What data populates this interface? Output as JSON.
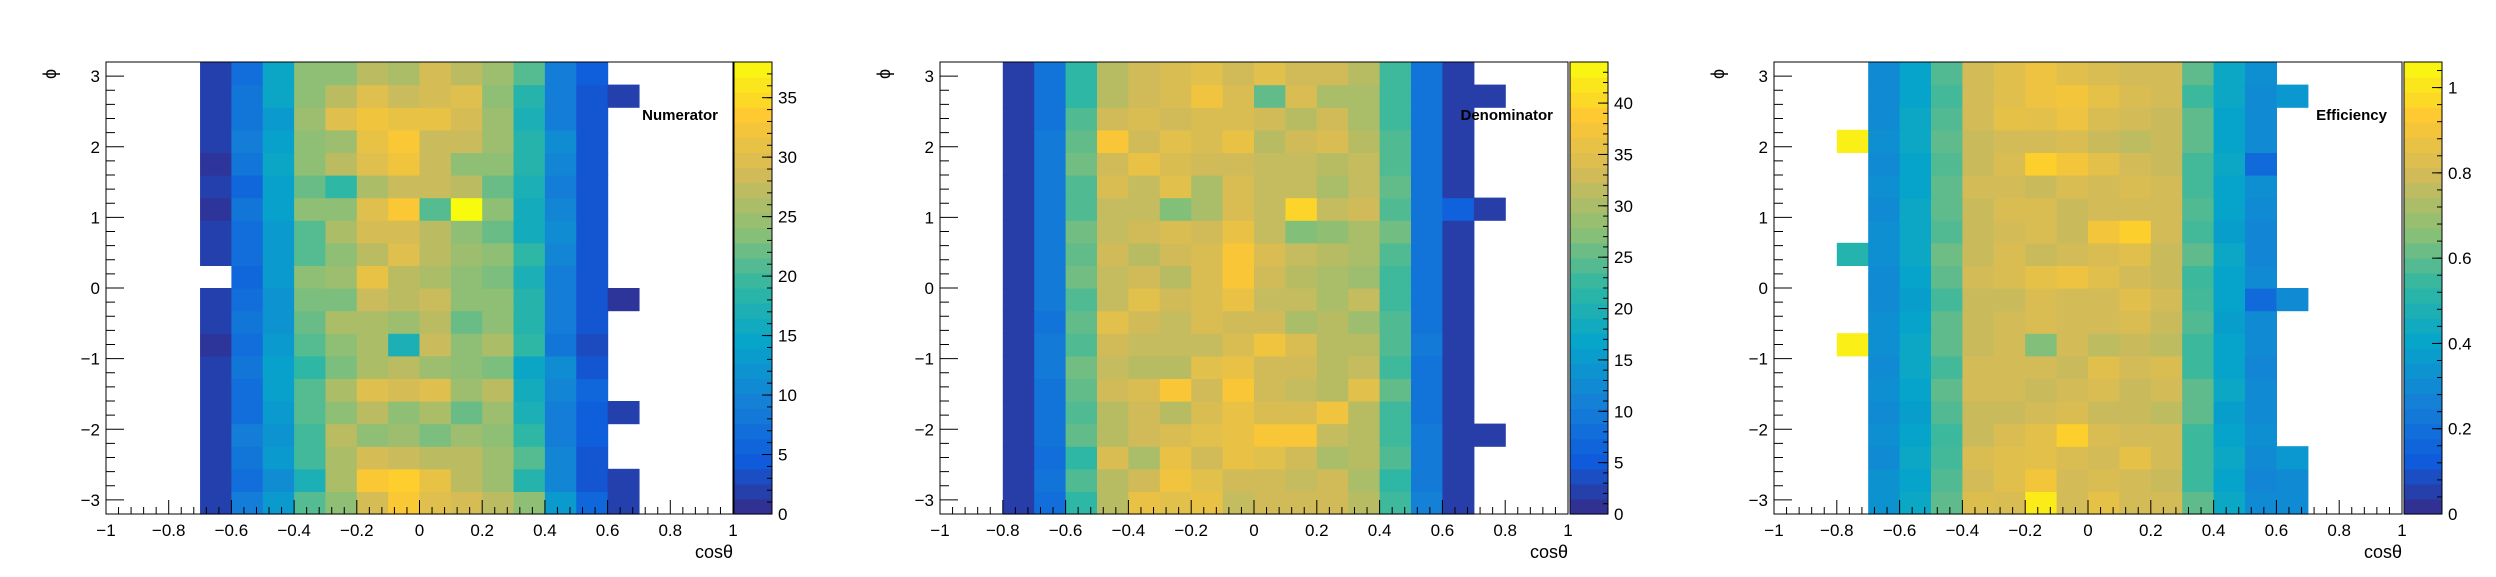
{
  "chart_data": [
    {
      "type": "heatmap",
      "title": "Numerator",
      "xlabel": "cosθ",
      "ylabel": "ϕ",
      "xlim": [
        -1,
        1
      ],
      "ylim": [
        -3.2,
        3.2
      ],
      "zlim": [
        0,
        38
      ],
      "x_ticks": [
        -1,
        -0.8,
        -0.6,
        -0.4,
        -0.2,
        0,
        0.2,
        0.4,
        0.6,
        0.8,
        1
      ],
      "x_tick_labels": [
        "−1",
        "−0.8",
        "−0.6",
        "−0.4",
        "−0.2",
        "0",
        "0.2",
        "0.4",
        "0.6",
        "0.8",
        "1"
      ],
      "y_ticks": [
        -3,
        -2,
        -1,
        0,
        1,
        2,
        3
      ],
      "y_tick_labels": [
        "−3",
        "−2",
        "−1",
        "0",
        "1",
        "2",
        "3"
      ],
      "z_ticks": [
        0,
        5,
        10,
        15,
        20,
        25,
        30,
        35
      ],
      "z_tick_labels": [
        "0",
        "5",
        "10",
        "15",
        "20",
        "25",
        "30",
        "35"
      ],
      "x_bin_edges": [
        -0.7,
        0.7
      ],
      "n_x_bins": 14,
      "n_y_bins": 20,
      "values": [
        [
          2,
          9,
          13,
          21,
          24,
          29,
          33,
          30,
          29,
          27,
          24,
          13,
          6,
          2
        ],
        [
          2,
          7,
          11,
          17,
          26,
          33,
          34,
          31,
          27,
          25,
          18,
          10,
          4,
          2
        ],
        [
          2,
          8,
          13,
          20,
          26,
          29,
          28,
          27,
          27,
          25,
          21,
          10,
          4,
          0
        ],
        [
          2,
          9,
          12,
          20,
          27,
          24,
          25,
          23,
          25,
          24,
          19,
          9,
          5,
          0
        ],
        [
          2,
          7,
          13,
          21,
          24,
          27,
          24,
          26,
          22,
          25,
          17,
          9,
          5,
          2
        ],
        [
          2,
          7,
          14,
          21,
          26,
          30,
          29,
          30,
          25,
          27,
          16,
          10,
          6,
          0
        ],
        [
          2,
          8,
          14,
          19,
          23,
          26,
          27,
          25,
          24,
          23,
          15,
          11,
          4,
          0
        ],
        [
          1,
          7,
          13,
          21,
          24,
          26,
          17,
          28,
          24,
          26,
          19,
          8,
          3,
          0
        ],
        [
          2,
          8,
          12,
          22,
          26,
          26,
          25,
          27,
          22,
          24,
          18,
          9,
          4,
          0
        ],
        [
          2,
          7,
          12,
          23,
          23,
          28,
          27,
          28,
          24,
          24,
          18,
          9,
          4,
          1
        ],
        [
          0,
          6,
          13,
          24,
          25,
          31,
          27,
          26,
          24,
          23,
          17,
          9,
          4,
          0
        ],
        [
          2,
          7,
          13,
          21,
          24,
          27,
          30,
          27,
          25,
          24,
          19,
          10,
          4,
          0
        ],
        [
          2,
          7,
          13,
          21,
          26,
          29,
          29,
          27,
          24,
          22,
          16,
          11,
          4,
          0
        ],
        [
          1,
          8,
          14,
          24,
          24,
          30,
          33,
          21,
          38,
          24,
          16,
          10,
          4,
          0
        ],
        [
          2,
          6,
          14,
          22,
          19,
          26,
          28,
          28,
          27,
          22,
          17,
          9,
          4,
          0
        ],
        [
          1,
          8,
          15,
          24,
          27,
          30,
          32,
          28,
          24,
          24,
          18,
          10,
          4,
          0
        ],
        [
          2,
          9,
          14,
          24,
          25,
          31,
          33,
          28,
          28,
          25,
          18,
          11,
          4,
          0
        ],
        [
          2,
          8,
          13,
          25,
          30,
          32,
          31,
          31,
          29,
          25,
          17,
          9,
          4,
          0
        ],
        [
          2,
          8,
          15,
          24,
          27,
          30,
          28,
          29,
          30,
          24,
          18,
          9,
          4,
          2
        ],
        [
          2,
          7,
          15,
          24,
          24,
          27,
          26,
          29,
          27,
          25,
          21,
          9,
          5,
          0
        ]
      ]
    },
    {
      "type": "heatmap",
      "title": "Denominator",
      "xlabel": "cosθ",
      "ylabel": "ϕ",
      "xlim": [
        -1,
        1
      ],
      "ylim": [
        -3.2,
        3.2
      ],
      "zlim": [
        0,
        44
      ],
      "x_ticks": [
        -1,
        -0.8,
        -0.6,
        -0.4,
        -0.2,
        0,
        0.2,
        0.4,
        0.6,
        0.8,
        1
      ],
      "x_tick_labels": [
        "−1",
        "−0.8",
        "−0.6",
        "−0.4",
        "−0.2",
        "0",
        "0.2",
        "0.4",
        "0.6",
        "0.8",
        "1"
      ],
      "y_ticks": [
        -3,
        -2,
        -1,
        0,
        1,
        2,
        3
      ],
      "y_tick_labels": [
        "−3",
        "−2",
        "−1",
        "0",
        "1",
        "2",
        "3"
      ],
      "z_ticks": [
        0,
        5,
        10,
        15,
        20,
        25,
        30,
        35,
        40
      ],
      "z_tick_labels": [
        "0",
        "5",
        "10",
        "15",
        "20",
        "25",
        "30",
        "35",
        "40"
      ],
      "x_bin_edges": [
        -0.9,
        0.9
      ],
      "n_x_bins": 18,
      "n_y_bins": 20,
      "values": [
        [
          0,
          2,
          8,
          22,
          31,
          36,
          35,
          36,
          32,
          33,
          33,
          33,
          31,
          23,
          11,
          2,
          0,
          0
        ],
        [
          0,
          2,
          9,
          24,
          31,
          33,
          37,
          35,
          33,
          33,
          32,
          33,
          30,
          22,
          10,
          2,
          0,
          0
        ],
        [
          0,
          2,
          8,
          22,
          34,
          30,
          36,
          33,
          36,
          35,
          33,
          30,
          31,
          24,
          10,
          2,
          0,
          0
        ],
        [
          0,
          2,
          9,
          25,
          31,
          33,
          34,
          35,
          36,
          38,
          38,
          32,
          31,
          23,
          10,
          2,
          2,
          0
        ],
        [
          0,
          2,
          9,
          24,
          31,
          33,
          31,
          34,
          36,
          34,
          34,
          37,
          31,
          23,
          9,
          2,
          0,
          0
        ],
        [
          0,
          2,
          9,
          25,
          33,
          34,
          38,
          33,
          38,
          33,
          32,
          31,
          35,
          25,
          9,
          2,
          0,
          0
        ],
        [
          0,
          2,
          10,
          26,
          32,
          31,
          31,
          35,
          36,
          33,
          33,
          31,
          32,
          23,
          9,
          2,
          0,
          0
        ],
        [
          0,
          2,
          10,
          24,
          33,
          32,
          32,
          32,
          34,
          37,
          34,
          31,
          31,
          24,
          10,
          2,
          0,
          0
        ],
        [
          0,
          2,
          9,
          25,
          35,
          33,
          32,
          34,
          33,
          33,
          30,
          31,
          29,
          24,
          9,
          2,
          0,
          0
        ],
        [
          0,
          2,
          10,
          24,
          32,
          35,
          33,
          34,
          36,
          32,
          32,
          30,
          32,
          23,
          9,
          2,
          0,
          0
        ],
        [
          0,
          2,
          10,
          26,
          32,
          33,
          31,
          34,
          38,
          33,
          31,
          30,
          29,
          23,
          9,
          2,
          0,
          0
        ],
        [
          0,
          2,
          10,
          25,
          33,
          31,
          33,
          34,
          38,
          34,
          32,
          31,
          30,
          24,
          9,
          2,
          0,
          0
        ],
        [
          0,
          2,
          10,
          26,
          32,
          33,
          34,
          33,
          36,
          32,
          27,
          28,
          30,
          26,
          9,
          2,
          0,
          0
        ],
        [
          0,
          2,
          10,
          24,
          32,
          32,
          27,
          30,
          34,
          32,
          40,
          32,
          33,
          24,
          9,
          6,
          2,
          0
        ],
        [
          0,
          2,
          10,
          24,
          34,
          32,
          35,
          30,
          34,
          32,
          32,
          30,
          32,
          25,
          9,
          2,
          0,
          0
        ],
        [
          0,
          2,
          10,
          26,
          33,
          36,
          34,
          33,
          33,
          32,
          32,
          31,
          32,
          24,
          9,
          2,
          0,
          0
        ],
        [
          0,
          2,
          10,
          25,
          38,
          33,
          35,
          34,
          36,
          31,
          33,
          34,
          31,
          24,
          9,
          2,
          0,
          0
        ],
        [
          0,
          2,
          9,
          24,
          33,
          34,
          33,
          34,
          34,
          33,
          31,
          33,
          30,
          23,
          9,
          2,
          0,
          0
        ],
        [
          0,
          2,
          9,
          22,
          31,
          33,
          34,
          37,
          34,
          25,
          34,
          30,
          30,
          23,
          9,
          2,
          2,
          0
        ],
        [
          0,
          2,
          9,
          22,
          31,
          33,
          34,
          35,
          33,
          35,
          33,
          33,
          31,
          23,
          9,
          2,
          0,
          0
        ]
      ]
    },
    {
      "type": "heatmap",
      "title": "Efficiency",
      "xlabel": "cosθ",
      "ylabel": "ϕ",
      "xlim": [
        -1,
        1
      ],
      "ylim": [
        -3.2,
        3.2
      ],
      "zlim": [
        0,
        1.06
      ],
      "x_ticks": [
        -1,
        -0.8,
        -0.6,
        -0.4,
        -0.2,
        0,
        0.2,
        0.4,
        0.6,
        0.8,
        1
      ],
      "x_tick_labels": [
        "−1",
        "−0.8",
        "−0.6",
        "−0.4",
        "−0.2",
        "0",
        "0.2",
        "0.4",
        "0.6",
        "0.8",
        "1"
      ],
      "y_ticks": [
        -3,
        -2,
        -1,
        0,
        1,
        2,
        3
      ],
      "y_tick_labels": [
        "−3",
        "−2",
        "−1",
        "0",
        "1",
        "2",
        "3"
      ],
      "z_ticks": [
        0,
        0.2,
        0.4,
        0.6,
        0.8,
        1
      ],
      "z_tick_labels": [
        "0",
        "0.2",
        "0.4",
        "0.6",
        "0.8",
        "1"
      ],
      "x_bin_edges": [
        -0.8,
        0.8
      ],
      "n_x_bins": 16,
      "n_y_bins": 20,
      "values": [
        [
          0,
          0.33,
          0.42,
          0.6,
          0.83,
          0.82,
          1.02,
          0.8,
          0.86,
          0.8,
          0.8,
          0.6,
          0.42,
          0.3,
          0.3,
          0
        ],
        [
          0,
          0.33,
          0.4,
          0.58,
          0.8,
          0.84,
          0.9,
          0.8,
          0.82,
          0.8,
          0.78,
          0.55,
          0.4,
          0.28,
          0.3,
          0
        ],
        [
          0,
          0.3,
          0.42,
          0.56,
          0.82,
          0.84,
          0.85,
          0.82,
          0.8,
          0.86,
          0.8,
          0.55,
          0.42,
          0.3,
          0.35,
          0
        ],
        [
          0,
          0.32,
          0.4,
          0.55,
          0.78,
          0.82,
          0.85,
          0.95,
          0.82,
          0.8,
          0.8,
          0.55,
          0.4,
          0.32,
          0,
          0
        ],
        [
          0,
          0.3,
          0.38,
          0.58,
          0.78,
          0.78,
          0.8,
          0.82,
          0.78,
          0.78,
          0.76,
          0.6,
          0.38,
          0.3,
          0,
          0
        ],
        [
          0,
          0.32,
          0.4,
          0.6,
          0.8,
          0.8,
          0.78,
          0.8,
          0.82,
          0.78,
          0.8,
          0.6,
          0.42,
          0.3,
          0,
          0
        ],
        [
          0,
          0.3,
          0.42,
          0.56,
          0.8,
          0.8,
          0.8,
          0.78,
          0.84,
          0.8,
          0.82,
          0.55,
          0.4,
          0.28,
          0,
          0
        ],
        [
          1.03,
          0.32,
          0.42,
          0.6,
          0.78,
          0.8,
          0.65,
          0.8,
          0.76,
          0.78,
          0.76,
          0.55,
          0.4,
          0.3,
          0,
          0
        ],
        [
          0,
          0.32,
          0.4,
          0.6,
          0.78,
          0.8,
          0.82,
          0.8,
          0.8,
          0.82,
          0.78,
          0.58,
          0.38,
          0.3,
          0,
          0
        ],
        [
          0,
          0.3,
          0.38,
          0.56,
          0.78,
          0.78,
          0.82,
          0.8,
          0.8,
          0.84,
          0.8,
          0.56,
          0.4,
          0.18,
          0.3,
          0
        ],
        [
          0,
          0.3,
          0.4,
          0.6,
          0.8,
          0.82,
          0.86,
          0.88,
          0.84,
          0.8,
          0.78,
          0.55,
          0.4,
          0.3,
          0,
          0
        ],
        [
          0.5,
          0.32,
          0.42,
          0.62,
          0.78,
          0.82,
          0.78,
          0.8,
          0.82,
          0.84,
          0.78,
          0.6,
          0.42,
          0.28,
          0,
          0
        ],
        [
          0,
          0.32,
          0.42,
          0.58,
          0.78,
          0.8,
          0.82,
          0.78,
          0.9,
          0.95,
          0.8,
          0.56,
          0.38,
          0.28,
          0,
          0
        ],
        [
          0,
          0.3,
          0.42,
          0.6,
          0.78,
          0.82,
          0.82,
          0.78,
          0.8,
          0.8,
          0.8,
          0.58,
          0.4,
          0.3,
          0,
          0
        ],
        [
          0,
          0.32,
          0.4,
          0.6,
          0.8,
          0.8,
          0.78,
          0.82,
          0.8,
          0.82,
          0.8,
          0.56,
          0.4,
          0.32,
          0,
          0
        ],
        [
          0,
          0.3,
          0.4,
          0.58,
          0.78,
          0.82,
          0.95,
          0.9,
          0.85,
          0.8,
          0.78,
          0.56,
          0.42,
          0.18,
          0,
          0
        ],
        [
          1.03,
          0.32,
          0.42,
          0.6,
          0.78,
          0.8,
          0.8,
          0.82,
          0.78,
          0.76,
          0.78,
          0.6,
          0.4,
          0.3,
          0,
          0
        ],
        [
          0,
          0.3,
          0.42,
          0.58,
          0.8,
          0.86,
          0.85,
          0.88,
          0.82,
          0.8,
          0.78,
          0.6,
          0.4,
          0.3,
          0,
          0
        ],
        [
          0,
          0.3,
          0.4,
          0.56,
          0.8,
          0.84,
          0.88,
          0.9,
          0.86,
          0.82,
          0.8,
          0.55,
          0.42,
          0.3,
          0.35,
          0
        ],
        [
          0,
          0.3,
          0.4,
          0.58,
          0.8,
          0.84,
          0.88,
          0.84,
          0.82,
          0.8,
          0.8,
          0.6,
          0.42,
          0.32,
          0,
          0
        ]
      ]
    }
  ]
}
